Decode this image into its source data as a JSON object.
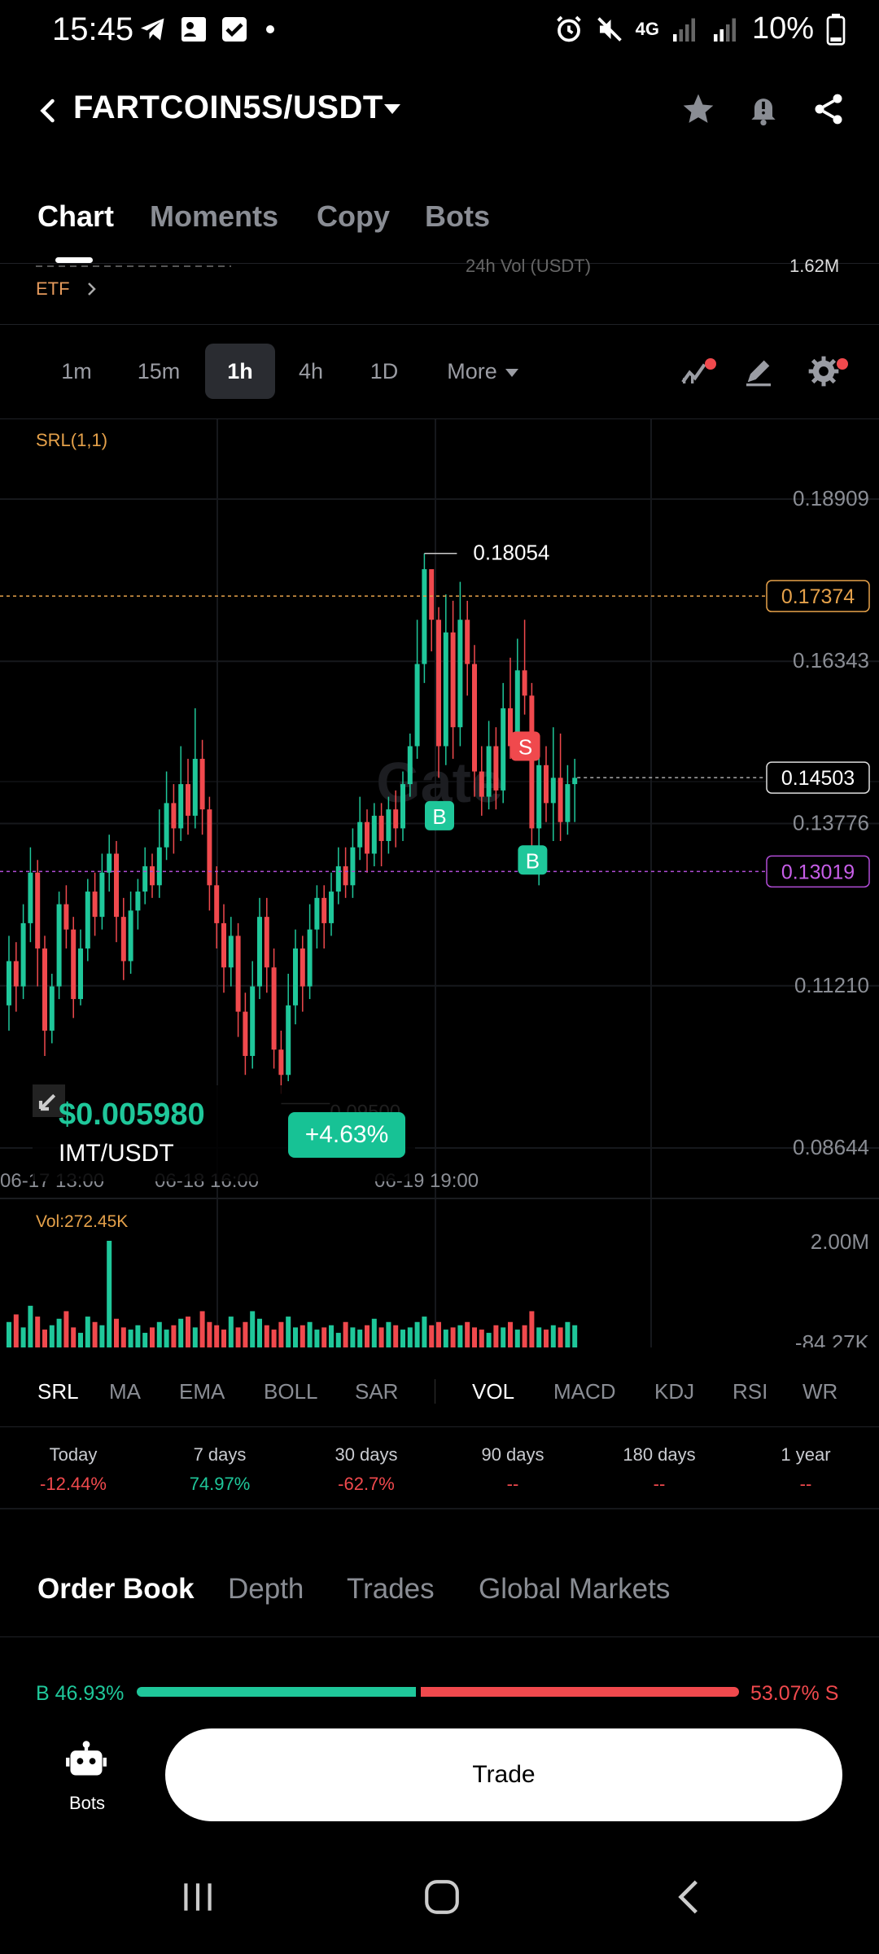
{
  "status_bar": {
    "time": "15:45",
    "network": "4G",
    "battery": "10%"
  },
  "header": {
    "pair": "FARTCOIN5S/USDT"
  },
  "top_tabs": [
    "Chart",
    "Moments",
    "Copy",
    "Bots"
  ],
  "info_row": {
    "etf_label": "ETF",
    "vol_label_partial": "24h Vol (USDT)",
    "vol_value_partial": "1.62M"
  },
  "intervals": [
    "1m",
    "15m",
    "1h",
    "4h",
    "1D",
    "More"
  ],
  "active_interval": "1h",
  "chart": {
    "indicator_label": "SRL(1,1)",
    "watermark": "Gate",
    "high_label": "0.18054",
    "low_label": "0.09500",
    "vol_label": "Vol:272.45K",
    "vol_axis_top": "2.00M",
    "vol_axis_bottom": "-84.27K"
  },
  "chart_data": {
    "type": "candlestick",
    "y_ticks": [
      "0.18909",
      "0.16343",
      "0.13776",
      "0.11210",
      "0.08644"
    ],
    "ylim": [
      0.08644,
      0.18909
    ],
    "x_ticks": [
      "06-17 13:00",
      "06-18 16:00",
      "06-19 19:00"
    ],
    "price_tags": {
      "resistance": "0.17374",
      "current": "0.14503",
      "support": "0.13019"
    },
    "markers": [
      {
        "label": "B",
        "kind": "buy"
      },
      {
        "label": "S",
        "kind": "sell"
      },
      {
        "label": "B",
        "kind": "buy"
      }
    ],
    "colors": {
      "up": "#1fc79a",
      "down": "#f0494d",
      "resistance": "#e5a14a",
      "support": "#b04cd6"
    },
    "candles": [
      [
        0.109,
        0.116,
        0.12,
        0.105
      ],
      [
        0.116,
        0.112,
        0.119,
        0.108
      ],
      [
        0.112,
        0.122,
        0.125,
        0.11
      ],
      [
        0.122,
        0.13,
        0.134,
        0.119
      ],
      [
        0.13,
        0.118,
        0.132,
        0.112
      ],
      [
        0.118,
        0.105,
        0.12,
        0.101
      ],
      [
        0.105,
        0.112,
        0.114,
        0.103
      ],
      [
        0.112,
        0.125,
        0.127,
        0.11
      ],
      [
        0.125,
        0.121,
        0.128,
        0.118
      ],
      [
        0.121,
        0.11,
        0.123,
        0.107
      ],
      [
        0.11,
        0.118,
        0.121,
        0.109
      ],
      [
        0.118,
        0.127,
        0.129,
        0.116
      ],
      [
        0.127,
        0.123,
        0.13,
        0.12
      ],
      [
        0.123,
        0.13,
        0.133,
        0.121
      ],
      [
        0.13,
        0.133,
        0.136,
        0.127
      ],
      [
        0.133,
        0.123,
        0.135,
        0.119
      ],
      [
        0.123,
        0.116,
        0.126,
        0.113
      ],
      [
        0.116,
        0.124,
        0.127,
        0.114
      ],
      [
        0.124,
        0.127,
        0.129,
        0.121
      ],
      [
        0.127,
        0.131,
        0.134,
        0.125
      ],
      [
        0.131,
        0.128,
        0.133,
        0.126
      ],
      [
        0.128,
        0.134,
        0.14,
        0.126
      ],
      [
        0.134,
        0.141,
        0.146,
        0.132
      ],
      [
        0.141,
        0.137,
        0.144,
        0.133
      ],
      [
        0.137,
        0.144,
        0.15,
        0.135
      ],
      [
        0.144,
        0.139,
        0.148,
        0.136
      ],
      [
        0.139,
        0.148,
        0.156,
        0.137
      ],
      [
        0.148,
        0.14,
        0.151,
        0.136
      ],
      [
        0.14,
        0.128,
        0.142,
        0.124
      ],
      [
        0.128,
        0.122,
        0.131,
        0.118
      ],
      [
        0.122,
        0.115,
        0.125,
        0.111
      ],
      [
        0.115,
        0.12,
        0.123,
        0.112
      ],
      [
        0.12,
        0.108,
        0.122,
        0.104
      ],
      [
        0.108,
        0.101,
        0.111,
        0.098
      ],
      [
        0.101,
        0.112,
        0.116,
        0.099
      ],
      [
        0.112,
        0.123,
        0.126,
        0.11
      ],
      [
        0.123,
        0.115,
        0.126,
        0.111
      ],
      [
        0.115,
        0.102,
        0.118,
        0.099
      ],
      [
        0.102,
        0.098,
        0.105,
        0.095
      ],
      [
        0.098,
        0.109,
        0.114,
        0.097
      ],
      [
        0.109,
        0.118,
        0.121,
        0.106
      ],
      [
        0.118,
        0.112,
        0.12,
        0.108
      ],
      [
        0.112,
        0.121,
        0.125,
        0.11
      ],
      [
        0.121,
        0.126,
        0.128,
        0.118
      ],
      [
        0.126,
        0.122,
        0.128,
        0.118
      ],
      [
        0.122,
        0.127,
        0.13,
        0.12
      ],
      [
        0.127,
        0.131,
        0.134,
        0.125
      ],
      [
        0.131,
        0.128,
        0.134,
        0.126
      ],
      [
        0.128,
        0.134,
        0.137,
        0.126
      ],
      [
        0.134,
        0.138,
        0.142,
        0.132
      ],
      [
        0.138,
        0.133,
        0.14,
        0.13
      ],
      [
        0.133,
        0.139,
        0.141,
        0.131
      ],
      [
        0.139,
        0.135,
        0.141,
        0.131
      ],
      [
        0.135,
        0.14,
        0.142,
        0.133
      ],
      [
        0.14,
        0.137,
        0.143,
        0.134
      ],
      [
        0.137,
        0.144,
        0.146,
        0.135
      ],
      [
        0.144,
        0.15,
        0.152,
        0.142
      ],
      [
        0.15,
        0.163,
        0.17,
        0.148
      ],
      [
        0.163,
        0.178,
        0.1805,
        0.16
      ],
      [
        0.178,
        0.17,
        0.177,
        0.165
      ],
      [
        0.17,
        0.15,
        0.172,
        0.145
      ],
      [
        0.15,
        0.168,
        0.174,
        0.147
      ],
      [
        0.168,
        0.153,
        0.173,
        0.148
      ],
      [
        0.153,
        0.17,
        0.176,
        0.15
      ],
      [
        0.17,
        0.163,
        0.173,
        0.158
      ],
      [
        0.163,
        0.146,
        0.166,
        0.142
      ],
      [
        0.146,
        0.142,
        0.15,
        0.139
      ],
      [
        0.142,
        0.15,
        0.154,
        0.14
      ],
      [
        0.15,
        0.143,
        0.153,
        0.14
      ],
      [
        0.143,
        0.156,
        0.16,
        0.141
      ],
      [
        0.156,
        0.15,
        0.164,
        0.148
      ],
      [
        0.15,
        0.162,
        0.167,
        0.149
      ],
      [
        0.162,
        0.158,
        0.17,
        0.155
      ],
      [
        0.158,
        0.137,
        0.16,
        0.134
      ],
      [
        0.137,
        0.147,
        0.151,
        0.128
      ],
      [
        0.147,
        0.141,
        0.15,
        0.138
      ],
      [
        0.141,
        0.145,
        0.153,
        0.135
      ],
      [
        0.145,
        0.138,
        0.152,
        0.135
      ],
      [
        0.138,
        0.144,
        0.147,
        0.136
      ],
      [
        0.144,
        0.145,
        0.148,
        0.138
      ]
    ],
    "volumes": [
      0.25,
      0.32,
      0.2,
      0.4,
      0.3,
      0.18,
      0.22,
      0.28,
      0.35,
      0.2,
      0.15,
      0.3,
      0.25,
      0.22,
      1.0,
      0.28,
      0.2,
      0.18,
      0.22,
      0.15,
      0.2,
      0.25,
      0.18,
      0.22,
      0.28,
      0.3,
      0.2,
      0.35,
      0.25,
      0.22,
      0.18,
      0.3,
      0.2,
      0.25,
      0.35,
      0.28,
      0.22,
      0.18,
      0.25,
      0.3,
      0.2,
      0.22,
      0.25,
      0.18,
      0.2,
      0.22,
      0.15,
      0.25,
      0.2,
      0.18,
      0.22,
      0.28,
      0.2,
      0.25,
      0.22,
      0.18,
      0.2,
      0.25,
      0.3,
      0.22,
      0.25,
      0.18,
      0.2,
      0.22,
      0.25,
      0.2,
      0.18,
      0.15,
      0.22,
      0.2,
      0.25,
      0.18,
      0.22,
      0.35,
      0.2,
      0.18,
      0.22,
      0.2,
      0.25,
      0.22
    ]
  },
  "indicator_tabs": {
    "main": [
      "SRL",
      "MA",
      "EMA",
      "BOLL",
      "SAR"
    ],
    "sub": [
      "VOL",
      "MACD",
      "KDJ",
      "RSI",
      "WR"
    ]
  },
  "performance": [
    {
      "label": "Today",
      "value": "-12.44%",
      "dir": "down"
    },
    {
      "label": "7 days",
      "value": "74.97%",
      "dir": "up"
    },
    {
      "label": "30 days",
      "value": "-62.7%",
      "dir": "down"
    },
    {
      "label": "90 days",
      "value": "--",
      "dir": "down"
    },
    {
      "label": "180 days",
      "value": "--",
      "dir": "down"
    },
    {
      "label": "1 year",
      "value": "--",
      "dir": "down"
    }
  ],
  "ticker_overlay": {
    "price": "$0.005980",
    "pair": "IMT/USDT",
    "change": "+4.63%"
  },
  "order_tabs": [
    "Order Book",
    "Depth",
    "Trades",
    "Global Markets"
  ],
  "ratio": {
    "buy_label": "B 46.93%",
    "sell_label": "53.07% S",
    "buy_pct": 46.93
  },
  "bottom": {
    "bots_label": "Bots",
    "trade_label": "Trade"
  }
}
